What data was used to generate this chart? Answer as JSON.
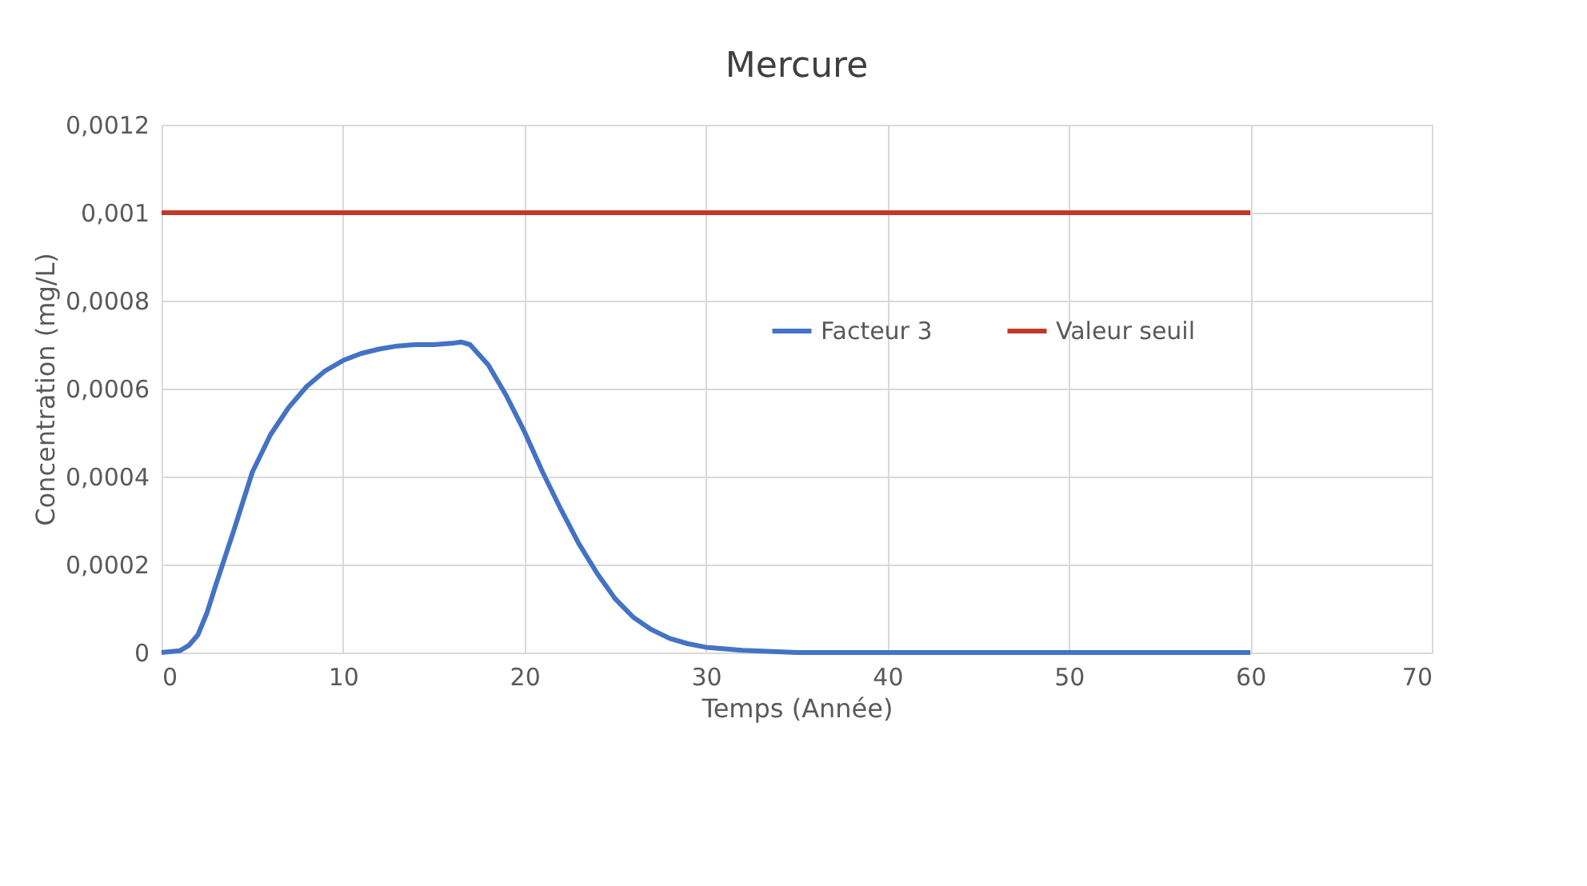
{
  "chart_data": {
    "type": "line",
    "title": "Mercure",
    "xlabel": "Temps (Année)",
    "ylabel": "Concentration (mg/L)",
    "xlim": [
      0,
      70
    ],
    "xticks": [
      0,
      10,
      20,
      30,
      40,
      50,
      60,
      70
    ],
    "ylim": [
      0,
      0.0012
    ],
    "yticks": [
      {
        "value": 0,
        "label": "0"
      },
      {
        "value": 0.0002,
        "label": "0,0002"
      },
      {
        "value": 0.0004,
        "label": "0,0004"
      },
      {
        "value": 0.0006,
        "label": "0,0006"
      },
      {
        "value": 0.0008,
        "label": "0,0008"
      },
      {
        "value": 0.001,
        "label": "0,001"
      },
      {
        "value": 0.0012,
        "label": "0,0012"
      }
    ],
    "grid": true,
    "legend": "top right",
    "marker": "none",
    "line_style": "solid",
    "series": [
      {
        "name": "Facteur 3",
        "color": "#4472c4",
        "x": [
          0,
          1,
          1.5,
          2,
          2.5,
          3,
          4,
          5,
          6,
          7,
          8,
          9,
          10,
          11,
          12,
          13,
          14,
          15,
          16,
          16.5,
          17,
          18,
          19,
          20,
          21,
          22,
          23,
          24,
          25,
          26,
          27,
          28,
          29,
          30,
          32,
          35,
          40,
          50,
          60
        ],
        "values": [
          0,
          4e-06,
          1.6e-05,
          4e-05,
          9e-05,
          0.000155,
          0.00028,
          0.00041,
          0.000495,
          0.000557,
          0.000605,
          0.00064,
          0.000664,
          0.00068,
          0.00069,
          0.000697,
          0.0007,
          0.0007,
          0.000703,
          0.000706,
          0.0007,
          0.000654,
          0.000584,
          0.000502,
          0.00041,
          0.000326,
          0.000247,
          0.00018,
          0.000122,
          8e-05,
          5.2e-05,
          3.2e-05,
          2e-05,
          1.2e-05,
          5e-06,
          0,
          0,
          0,
          0
        ]
      },
      {
        "name": "Valeur seuil",
        "color": "#c0392b",
        "x": [
          0,
          60
        ],
        "values": [
          0.001,
          0.001
        ]
      }
    ]
  }
}
